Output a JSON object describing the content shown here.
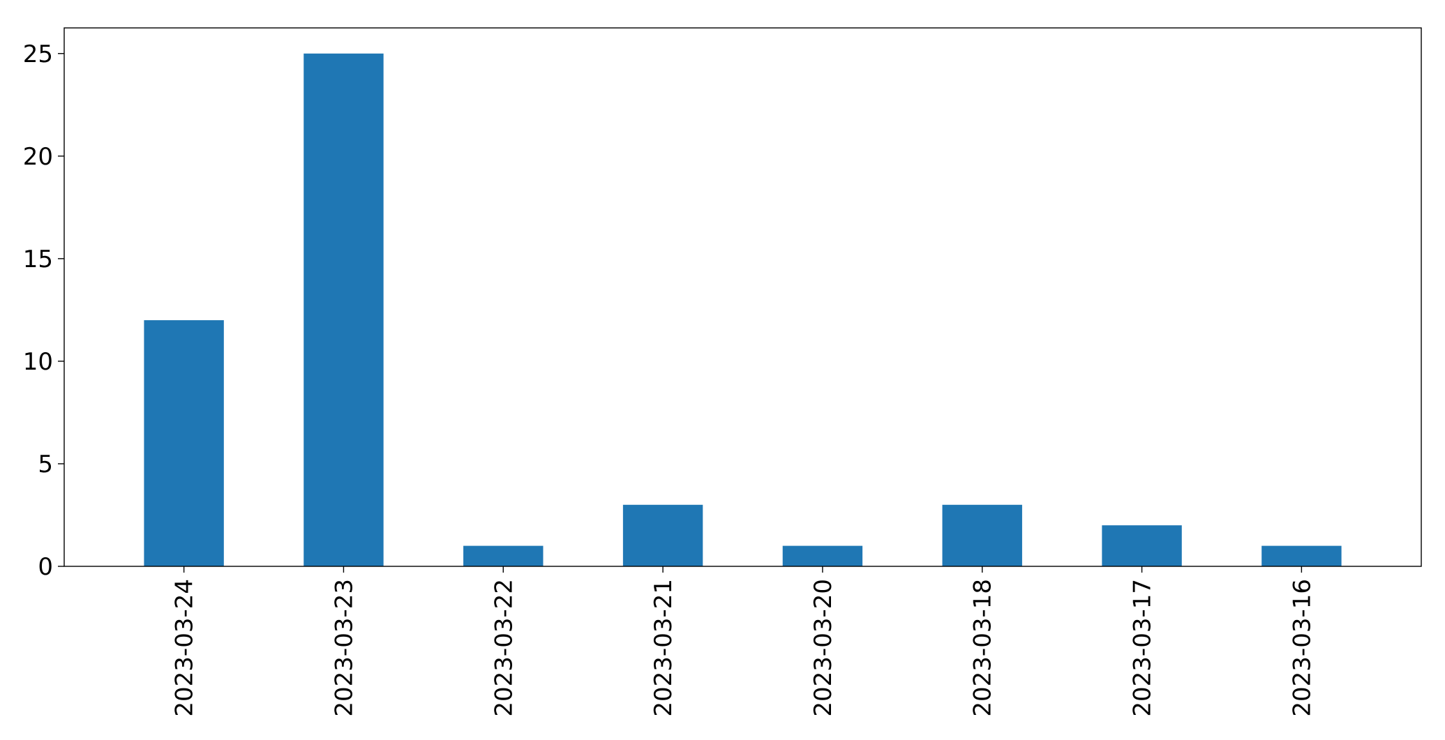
{
  "chart_data": {
    "type": "bar",
    "categories": [
      "2023-03-24",
      "2023-03-23",
      "2023-03-22",
      "2023-03-21",
      "2023-03-20",
      "2023-03-18",
      "2023-03-17",
      "2023-03-16"
    ],
    "values": [
      12,
      25,
      1,
      3,
      1,
      3,
      2,
      1
    ],
    "yticks": [
      0,
      5,
      10,
      15,
      20,
      25
    ],
    "ylim": [
      0,
      26.25
    ],
    "title": "",
    "xlabel": "",
    "ylabel": "",
    "grid": false,
    "legend": false,
    "bar_color": "#1f77b4"
  }
}
